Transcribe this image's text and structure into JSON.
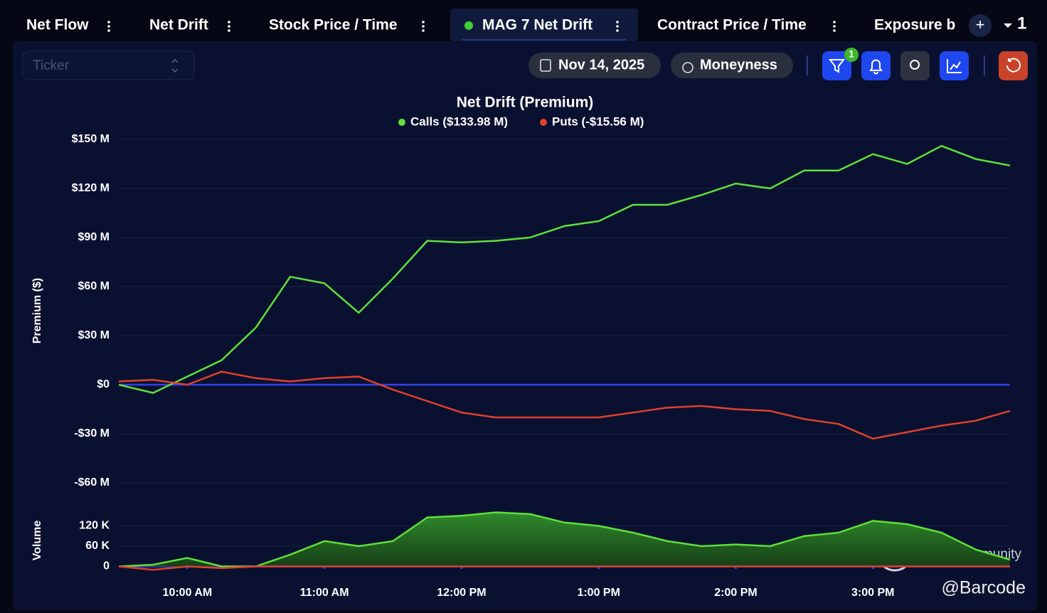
{
  "tabs": [
    "Net Flow",
    "Net Drift",
    "Stock Price / Time",
    "MAG 7 Net Drift",
    "Contract Price / Time",
    "Exposure b"
  ],
  "active_tab": "MAG 7 Net Drift",
  "add_tab": "+",
  "tab_count": "1",
  "toolbar": {
    "ticker_placeholder": "Ticker",
    "date": "Nov 14, 2025",
    "moneyness": "Moneyness",
    "filter_count": "1"
  },
  "watermark": "Tiger Community",
  "credit": "@Barcode",
  "chart_data": [
    {
      "type": "line",
      "title": "Net Drift (Premium)",
      "y_label": "Premium ($)",
      "x": [
        9.5,
        9.75,
        10,
        10.25,
        10.5,
        10.75,
        11,
        11.25,
        11.5,
        11.75,
        12,
        12.25,
        12.5,
        12.75,
        13,
        13.25,
        13.5,
        13.75,
        14,
        14.25,
        14.5,
        14.75,
        15,
        15.25,
        15.5,
        15.75,
        16
      ],
      "xlim": [
        9.5,
        16
      ],
      "ylim": [
        -60,
        150
      ],
      "yticks": [
        {
          "value": 150,
          "label": "$150 M"
        },
        {
          "value": 120,
          "label": "$120 M"
        },
        {
          "value": 90,
          "label": "$90 M"
        },
        {
          "value": 60,
          "label": "$60 M"
        },
        {
          "value": 30,
          "label": "$30 M"
        },
        {
          "value": 0,
          "label": "$0"
        },
        {
          "value": -30,
          "label": "-$30 M"
        },
        {
          "value": -60,
          "label": "-$60 M"
        }
      ],
      "grid": true,
      "zero_line_color": "#3440e6",
      "series": [
        {
          "name": "Calls ($133.98 M)",
          "color": "#5fe03a",
          "values": [
            0,
            -5,
            5,
            15,
            35,
            66,
            62,
            44,
            65,
            88,
            87,
            88,
            90,
            97,
            100,
            110,
            110,
            116,
            123,
            120,
            131,
            131,
            141,
            135,
            146,
            138,
            134
          ]
        },
        {
          "name": "Puts (-$15.56 M)",
          "color": "#e0402c",
          "values": [
            2,
            3,
            0,
            8,
            4,
            2,
            4,
            5,
            -3,
            -10,
            -17,
            -20,
            -20,
            -20,
            -20,
            -17,
            -14,
            -13,
            -15,
            -16,
            -21,
            -24,
            -33,
            -29,
            -25,
            -22,
            -16
          ]
        }
      ]
    },
    {
      "type": "area",
      "y_label": "Volume",
      "x": [
        9.5,
        9.75,
        10,
        10.25,
        10.5,
        10.75,
        11,
        11.25,
        11.5,
        11.75,
        12,
        12.25,
        12.5,
        12.75,
        13,
        13.25,
        13.5,
        13.75,
        14,
        14.25,
        14.5,
        14.75,
        15,
        15.25,
        15.5,
        15.75,
        16
      ],
      "xlim": [
        9.5,
        16
      ],
      "xticks": [
        {
          "value": 10,
          "label": "10:00 AM"
        },
        {
          "value": 11,
          "label": "11:00 AM"
        },
        {
          "value": 12,
          "label": "12:00 PM"
        },
        {
          "value": 13,
          "label": "1:00 PM"
        },
        {
          "value": 14,
          "label": "2:00 PM"
        },
        {
          "value": 15,
          "label": "3:00 PM"
        }
      ],
      "ylim": [
        -20000,
        180000
      ],
      "yticks": [
        {
          "value": 120000,
          "label": "120 K"
        },
        {
          "value": 60000,
          "label": "60 K"
        },
        0
      ],
      "grid": true,
      "zero_line_color": "#3440e6",
      "series": [
        {
          "name": "Calls",
          "color": "#5fe03a",
          "values": [
            0,
            5000,
            25000,
            0,
            0,
            35000,
            75000,
            60000,
            75000,
            145000,
            150000,
            160000,
            155000,
            130000,
            120000,
            100000,
            75000,
            60000,
            65000,
            60000,
            90000,
            100000,
            135000,
            125000,
            100000,
            50000,
            20000
          ]
        },
        {
          "name": "Puts",
          "color": "#e0402c",
          "values": [
            0,
            -10000,
            0,
            -5000,
            0,
            0,
            0,
            0,
            0,
            0,
            0,
            0,
            0,
            0,
            0,
            0,
            0,
            0,
            0,
            0,
            0,
            0,
            0,
            0,
            0,
            0,
            0
          ]
        }
      ]
    }
  ]
}
